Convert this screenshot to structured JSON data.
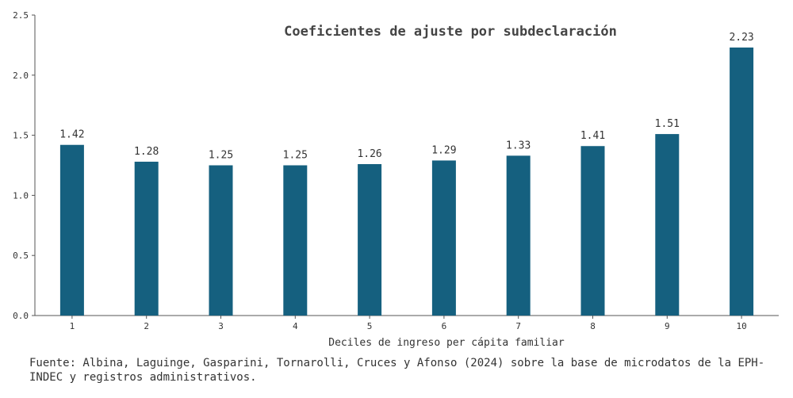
{
  "chart_data": {
    "type": "bar",
    "title": "Coeficientes de ajuste por subdeclaración",
    "xlabel": "Deciles de ingreso per cápita familiar",
    "ylabel": "",
    "categories": [
      "1",
      "2",
      "3",
      "4",
      "5",
      "6",
      "7",
      "8",
      "9",
      "10"
    ],
    "values": [
      1.42,
      1.28,
      1.25,
      1.25,
      1.26,
      1.29,
      1.33,
      1.41,
      1.51,
      2.23
    ],
    "value_labels": [
      "1.42",
      "1.28",
      "1.25",
      "1.25",
      "1.26",
      "1.29",
      "1.33",
      "1.41",
      "1.51",
      "2.23"
    ],
    "ylim": [
      0,
      2.5
    ],
    "yticks": [
      0,
      0.5,
      1.0,
      1.5,
      2.0,
      2.5
    ],
    "ytick_labels": [
      "0.0",
      "0.5",
      "1.0",
      "1.5",
      "2.0",
      "2.5"
    ],
    "bar_color": "#15607f",
    "grid": false
  },
  "source": "Fuente: Albina, Laguinge, Gasparini, Tornarolli, Cruces y Afonso (2024) sobre la base de microdatos de la EPH-INDEC y registros administrativos."
}
